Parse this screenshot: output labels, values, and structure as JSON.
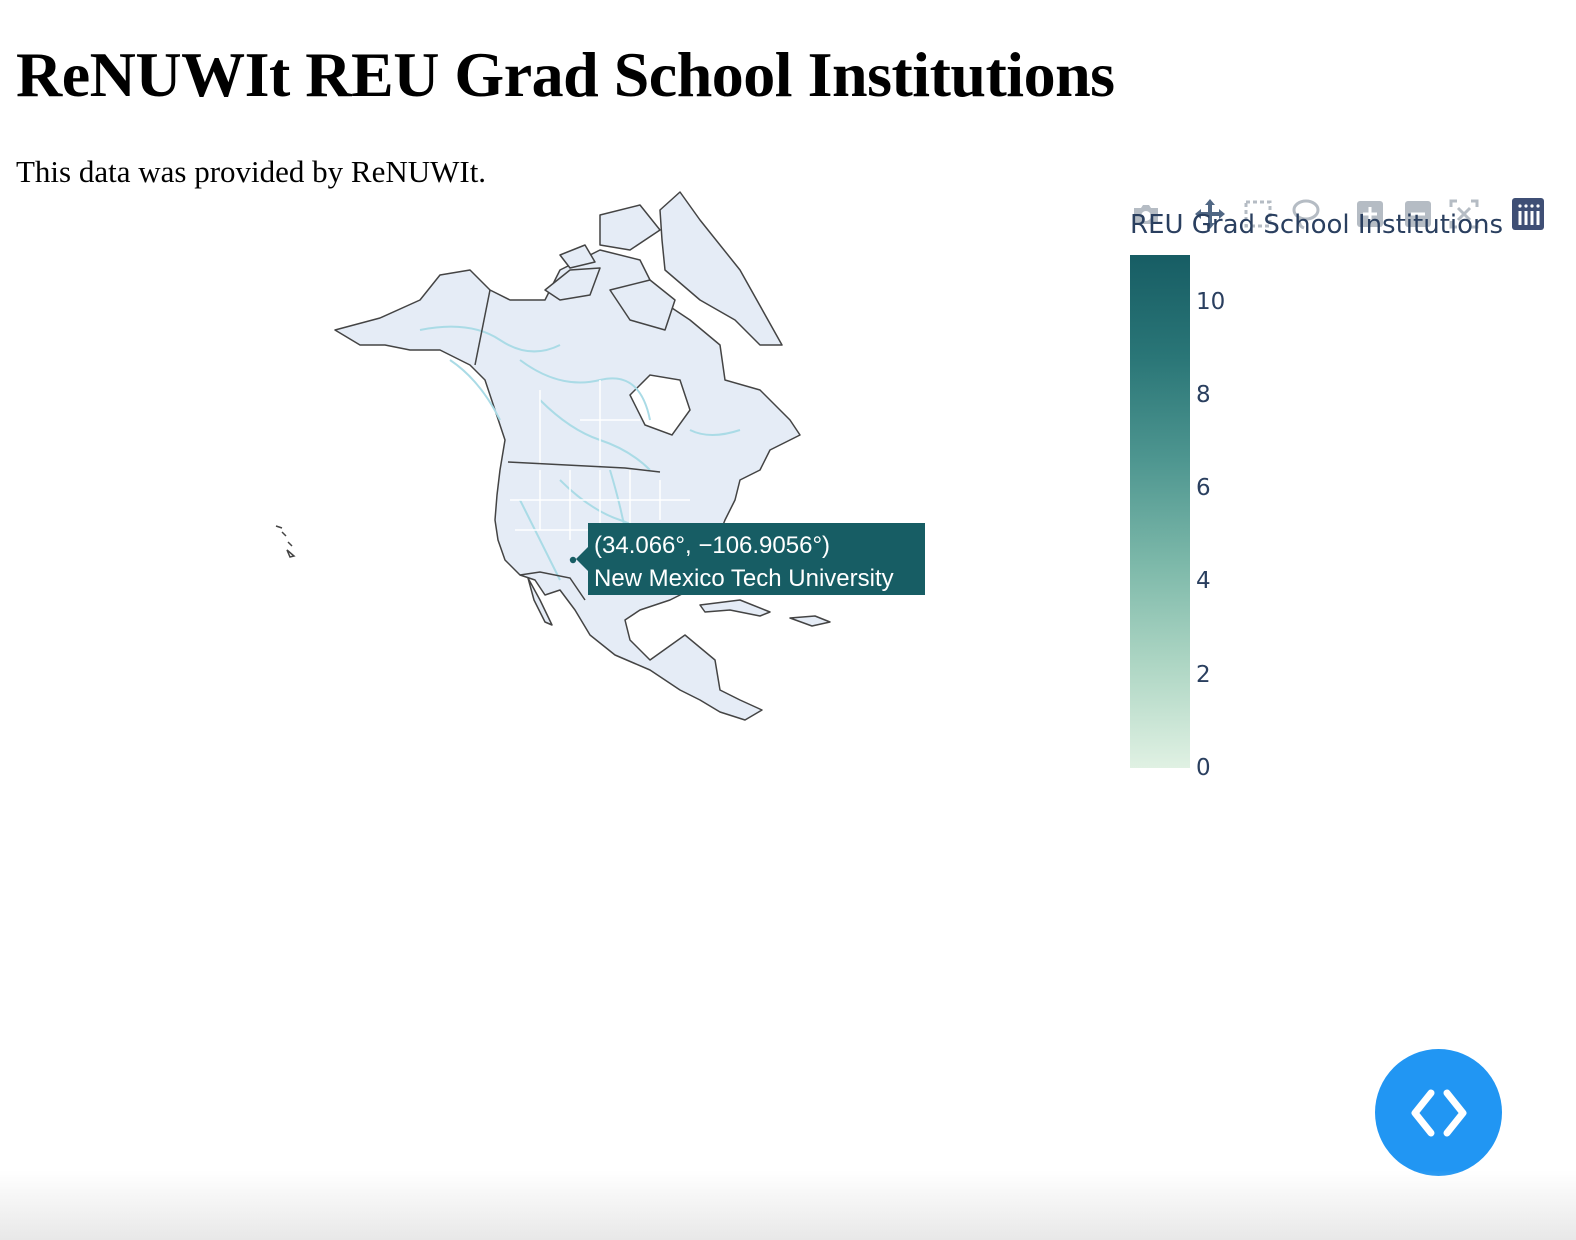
{
  "page": {
    "title": "ReNUWIt REU Grad School Institutions",
    "subtitle": "This data was provided by ReNUWIt."
  },
  "map": {
    "region": "North America",
    "colorbar": {
      "title": "REU Grad School Institutions",
      "ticks": [
        "10",
        "8",
        "6",
        "4",
        "2",
        "0"
      ],
      "range": [
        0,
        11
      ],
      "colors": [
        "#e0f1e3",
        "#aed6c4",
        "#7cb8a9",
        "#4e9690",
        "#2a7677",
        "#175d64"
      ]
    },
    "points_color": "#175d64",
    "land_color": "#e5ecf6",
    "river_color": "#aadbe6",
    "points": [
      {
        "lat": 34.066,
        "lon": -106.9056,
        "name": "New Mexico Tech University"
      }
    ],
    "tooltip": {
      "coords": "(34.066°, −106.9056°)",
      "name": "New Mexico Tech University"
    }
  },
  "modebar": {
    "buttons": [
      "camera-icon",
      "pan-icon",
      "box-select-icon",
      "lasso-select-icon",
      "zoom-in-icon",
      "zoom-out-icon",
      "reset-view-icon",
      "plotly-logo-icon"
    ]
  },
  "fab": {
    "icon": "code-brackets-icon",
    "color": "#2196f3"
  }
}
